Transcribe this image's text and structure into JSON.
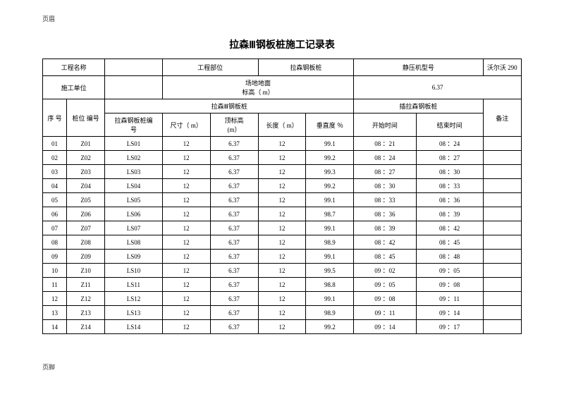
{
  "header_note": "页眉",
  "footer_note": "页脚",
  "title": "拉森Ⅲ钢板桩施工记录表",
  "meta": {
    "project_name_label": "工程名称",
    "project_part_label": "工程部位",
    "pile_type": "拉森钢板桩",
    "machine_label": "静压机型号",
    "machine_value": "沃尔沃 290",
    "construction_unit_label": "施工单位",
    "ground_label": "场地地面\n标高（ m）",
    "ground_value": "6.37"
  },
  "col_headers": {
    "seq": "序\n号",
    "pile_no": "桩位\n编号",
    "section_a": "拉森Ⅲ钢板桩",
    "section_b": "插拉森钢板桩",
    "remark": "备注",
    "a1": "拉森钢板桩编\n号",
    "a2": "尺寸（ m）",
    "a3": "顶标高\n(m）",
    "a4": "长度（ m）",
    "a5": "垂直度 ％",
    "b1": "开始时间",
    "b2": "结束时间"
  },
  "rows": [
    {
      "seq": "01",
      "pno": "Z01",
      "lsno": "LS01",
      "size": "12",
      "top": "6.37",
      "len": "12",
      "vert": "99.1",
      "st": "08 ：21",
      "et": "08 ：24"
    },
    {
      "seq": "02",
      "pno": "Z02",
      "lsno": "LS02",
      "size": "12",
      "top": "6.37",
      "len": "12",
      "vert": "99.2",
      "st": "08 ：24",
      "et": "08 ：27"
    },
    {
      "seq": "03",
      "pno": "Z03",
      "lsno": "LS03",
      "size": "12",
      "top": "6.37",
      "len": "12",
      "vert": "99.3",
      "st": "08 ：27",
      "et": "08 ：30"
    },
    {
      "seq": "04",
      "pno": "Z04",
      "lsno": "LS04",
      "size": "12",
      "top": "6.37",
      "len": "12",
      "vert": "99.2",
      "st": "08 ：30",
      "et": "08 ：33"
    },
    {
      "seq": "05",
      "pno": "Z05",
      "lsno": "LS05",
      "size": "12",
      "top": "6.37",
      "len": "12",
      "vert": "99.1",
      "st": "08 ：33",
      "et": "08 ：36"
    },
    {
      "seq": "06",
      "pno": "Z06",
      "lsno": "LS06",
      "size": "12",
      "top": "6.37",
      "len": "12",
      "vert": "98.7",
      "st": "08 ：36",
      "et": "08 ：39"
    },
    {
      "seq": "07",
      "pno": "Z07",
      "lsno": "LS07",
      "size": "12",
      "top": "6.37",
      "len": "12",
      "vert": "99.1",
      "st": "08 ：39",
      "et": "08 ：42"
    },
    {
      "seq": "08",
      "pno": "Z08",
      "lsno": "LS08",
      "size": "12",
      "top": "6.37",
      "len": "12",
      "vert": "98.9",
      "st": "08 ：42",
      "et": "08 ：45"
    },
    {
      "seq": "09",
      "pno": "Z09",
      "lsno": "LS09",
      "size": "12",
      "top": "6.37",
      "len": "12",
      "vert": "99.1",
      "st": "08 ：45",
      "et": "08 ：48"
    },
    {
      "seq": "10",
      "pno": "Z10",
      "lsno": "LS10",
      "size": "12",
      "top": "6.37",
      "len": "12",
      "vert": "99.5",
      "st": "09 ：02",
      "et": "09 ：05"
    },
    {
      "seq": "11",
      "pno": "Z11",
      "lsno": "LS11",
      "size": "12",
      "top": "6.37",
      "len": "12",
      "vert": "98.8",
      "st": "09 ：05",
      "et": "09 ：08"
    },
    {
      "seq": "12",
      "pno": "Z12",
      "lsno": "LS12",
      "size": "12",
      "top": "6.37",
      "len": "12",
      "vert": "99.1",
      "st": "09 ：08",
      "et": "09 ：11"
    },
    {
      "seq": "13",
      "pno": "Z13",
      "lsno": "LS13",
      "size": "12",
      "top": "6.37",
      "len": "12",
      "vert": "98.9",
      "st": "09 ：11",
      "et": "09 ：14"
    },
    {
      "seq": "14",
      "pno": "Z14",
      "lsno": "LS14",
      "size": "12",
      "top": "6.37",
      "len": "12",
      "vert": "99.2",
      "st": "09 ：14",
      "et": "09 ：17"
    }
  ]
}
